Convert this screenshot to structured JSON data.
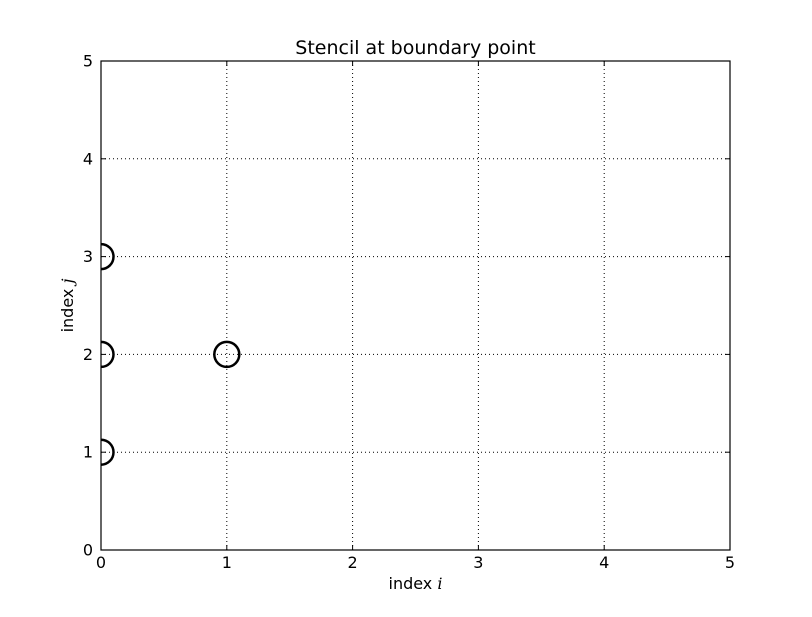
{
  "chart_data": {
    "type": "scatter",
    "title": "Stencil at boundary point",
    "xlabel": "index",
    "xlabel_var": "i",
    "ylabel": "index",
    "ylabel_var": "j",
    "xlim": [
      0,
      5
    ],
    "ylim": [
      0,
      5
    ],
    "xticks": [
      "0",
      "1",
      "2",
      "3",
      "4",
      "5"
    ],
    "yticks": [
      "0",
      "1",
      "2",
      "3",
      "4",
      "5"
    ],
    "grid": true,
    "grid_style": "dotted",
    "marker": "open-circle",
    "marker_color": "#000000",
    "points": [
      {
        "x": 0,
        "y": 1
      },
      {
        "x": 0,
        "y": 2
      },
      {
        "x": 0,
        "y": 3
      },
      {
        "x": 1,
        "y": 2
      }
    ]
  }
}
